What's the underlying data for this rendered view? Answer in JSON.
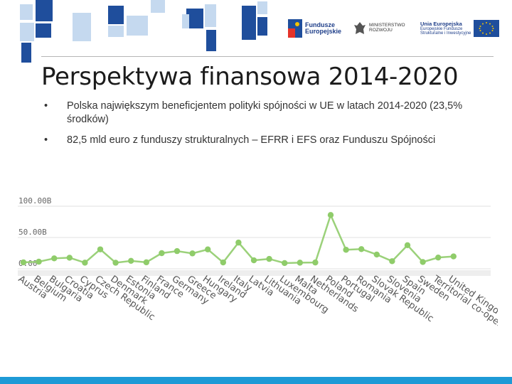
{
  "header": {
    "logo_fe": {
      "line1": "Fundusze",
      "line2": "Europejskie"
    },
    "logo_ministry": {
      "line1": "MINISTERSTWO",
      "line2": "ROZWOJU"
    },
    "logo_eu": {
      "line1": "Unia Europejska",
      "line2": "Europejskie Fundusze",
      "line3": "Strukturalne i Inwestycyjne"
    }
  },
  "slide": {
    "title": "Perspektywa finansowa 2014-2020",
    "bullets": [
      {
        "marker": "•",
        "text": "Polska największym beneficjentem polityki spójności w UE w latach 2014-2020 (23,5% środków)"
      },
      {
        "marker": "•",
        "text": "82,5 mld euro z funduszy strukturalnych – EFRR i EFS oraz Funduszu Spójności"
      }
    ]
  },
  "colors": {
    "line": "#9bd17a",
    "marker": "#8fcc6a",
    "grid": "#e2e2e2",
    "accent_blue": "#1e9ad6",
    "deco_dark": "#1f4e9c",
    "deco_light": "#c5d9ef"
  },
  "chart_data": {
    "type": "line",
    "categories": [
      "Austria",
      "Belgium",
      "Bulgaria",
      "Croatia",
      "Cyprus",
      "Czech Republic",
      "Denmark",
      "Estonia",
      "Finland",
      "France",
      "Germany",
      "Greece",
      "Hungary",
      "Ireland",
      "Italy",
      "Latvia",
      "Lithuania",
      "Luxembourg",
      "Malta",
      "Netherlands",
      "Poland",
      "Portugal",
      "Romania",
      "Slovak Republic",
      "Slovenia",
      "Spain",
      "Sweden",
      "Territorial co-operation",
      "United Kingdom"
    ],
    "values": [
      1.2,
      2.3,
      7.6,
      8.6,
      0.7,
      22.0,
      0.6,
      3.6,
      1.3,
      15.9,
      19.2,
      15.5,
      21.9,
      1.1,
      32.8,
      4.5,
      6.7,
      0.04,
      0.7,
      1.0,
      76.9,
      21.3,
      22.4,
      13.7,
      3.1,
      28.6,
      1.8,
      8.9,
      10.7
    ],
    "yticks": [
      "100.00B",
      "50.00B",
      "0.00"
    ],
    "ylim": [
      0,
      100
    ],
    "grid": true
  }
}
